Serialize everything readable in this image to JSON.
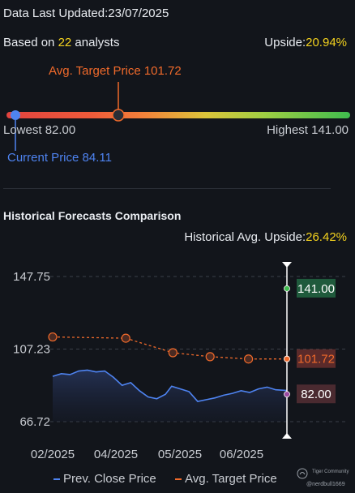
{
  "header": {
    "last_updated_label": "Data Last Updated:",
    "last_updated_value": "23/07/2025",
    "based_on_prefix": "Based on ",
    "analyst_count": "22",
    "based_on_suffix": " analysts",
    "upside_label": "Upside:",
    "upside_value": "20.94%"
  },
  "gauge": {
    "avg_target_label": "Avg. Target Price 101.72",
    "lowest_label": "Lowest 82.00",
    "highest_label": "Highest 141.00",
    "current_label": "Current Price 84.11",
    "lowest": 82.0,
    "highest": 141.0,
    "avg_target": 101.72,
    "current": 84.11
  },
  "history": {
    "title": "Historical Forecasts Comparison",
    "avg_upside_label": "Historical Avg. Upside:",
    "avg_upside_value": "26.42%",
    "legend_prev_close": "Prev. Close Price",
    "legend_avg_target": "Avg. Target Price"
  },
  "watermark": {
    "brand": "Tiger Community",
    "user": "@nerdbull1669"
  },
  "colors": {
    "accent_yellow": "#f5d31e",
    "orange": "#f06a2b",
    "blue": "#4e83f0",
    "green_badge": "#1f5a3c",
    "red_badge": "#5a2a2a"
  },
  "chart_data": {
    "type": "line",
    "y_ticks": [
      "147.75",
      "107.23",
      "66.72"
    ],
    "ylim": [
      66.72,
      147.75
    ],
    "x_ticks": [
      "02/2025",
      "04/2025",
      "05/2025",
      "06/2025"
    ],
    "series": [
      {
        "name": "Avg. Target Price",
        "style": "dashed-with-markers",
        "color": "#f06a2b",
        "points": [
          {
            "x": "2025-01-15",
            "y": 114.0
          },
          {
            "x": "2025-03-15",
            "y": 113.3
          },
          {
            "x": "2025-04-22",
            "y": 105.2
          },
          {
            "x": "2025-05-22",
            "y": 103.0
          },
          {
            "x": "2025-06-22",
            "y": 101.7
          },
          {
            "x": "2025-07-23",
            "y": 101.72
          }
        ]
      },
      {
        "name": "Prev. Close Price",
        "style": "line-with-area",
        "color": "#4e83f0",
        "points": [
          {
            "x": "2025-01-15",
            "y": 92.0
          },
          {
            "x": "2025-01-22",
            "y": 93.5
          },
          {
            "x": "2025-01-29",
            "y": 93.0
          },
          {
            "x": "2025-02-05",
            "y": 95.0
          },
          {
            "x": "2025-02-12",
            "y": 95.5
          },
          {
            "x": "2025-02-19",
            "y": 94.5
          },
          {
            "x": "2025-02-26",
            "y": 95.0
          },
          {
            "x": "2025-03-05",
            "y": 91.5
          },
          {
            "x": "2025-03-12",
            "y": 87.0
          },
          {
            "x": "2025-03-19",
            "y": 88.5
          },
          {
            "x": "2025-03-26",
            "y": 84.0
          },
          {
            "x": "2025-04-02",
            "y": 80.5
          },
          {
            "x": "2025-04-09",
            "y": 79.5
          },
          {
            "x": "2025-04-16",
            "y": 82.0
          },
          {
            "x": "2025-04-21",
            "y": 86.5
          },
          {
            "x": "2025-04-28",
            "y": 85.0
          },
          {
            "x": "2025-05-05",
            "y": 83.5
          },
          {
            "x": "2025-05-12",
            "y": 78.0
          },
          {
            "x": "2025-05-19",
            "y": 79.0
          },
          {
            "x": "2025-05-26",
            "y": 80.0
          },
          {
            "x": "2025-06-02",
            "y": 81.5
          },
          {
            "x": "2025-06-09",
            "y": 82.5
          },
          {
            "x": "2025-06-16",
            "y": 84.0
          },
          {
            "x": "2025-06-23",
            "y": 83.0
          },
          {
            "x": "2025-06-30",
            "y": 85.0
          },
          {
            "x": "2025-07-07",
            "y": 86.0
          },
          {
            "x": "2025-07-14",
            "y": 84.5
          },
          {
            "x": "2025-07-23",
            "y": 84.11
          }
        ]
      }
    ],
    "markers": [
      {
        "label": "141.00",
        "value": 141.0,
        "color": "#1f5a3c"
      },
      {
        "label": "101.72",
        "value": 101.72,
        "color": "#5a2a2a"
      },
      {
        "label": "82.00",
        "value": 82.0,
        "color": "#4a2a30"
      }
    ],
    "grid": "dashed-horizontal"
  }
}
